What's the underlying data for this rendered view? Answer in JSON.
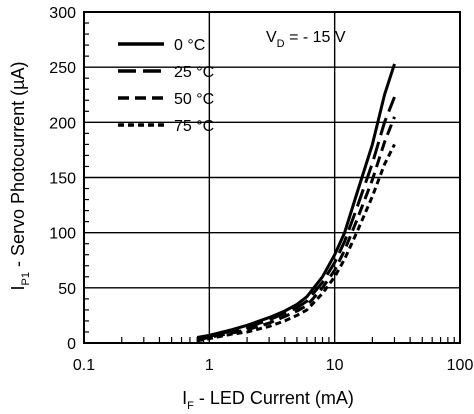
{
  "chart_data": {
    "type": "line",
    "xscale": "log",
    "xlim": [
      0.1,
      100
    ],
    "ylim": [
      0,
      300
    ],
    "grid": true,
    "legend_position": "top-left",
    "x_tick_labels": [
      "0.1",
      "1",
      "10",
      "100"
    ],
    "y_tick_labels": [
      "0",
      "50",
      "100",
      "150",
      "200",
      "250",
      "300"
    ],
    "xlabel": {
      "main": "I",
      "sub": "F",
      "rest": " - LED Current (mA)"
    },
    "ylabel": {
      "main": "I",
      "sub": "P1",
      "rest": " - Servo Photocurrent (µA)"
    },
    "annotation": {
      "main": "V",
      "sub": "D",
      "rest": " = - 15 V"
    },
    "series": [
      {
        "name": "0 °C",
        "dash": "solid",
        "x": [
          0.8,
          1,
          1.5,
          2,
          3,
          4,
          5,
          6,
          8,
          10,
          12,
          15,
          20,
          25,
          30
        ],
        "y": [
          5,
          7,
          12,
          16,
          23,
          29,
          35,
          42,
          60,
          80,
          100,
          135,
          180,
          225,
          253
        ]
      },
      {
        "name": "25 °C",
        "dash": "long-dash",
        "x": [
          0.8,
          1,
          1.5,
          2,
          3,
          4,
          5,
          6,
          8,
          10,
          12,
          15,
          20,
          25,
          30
        ],
        "y": [
          4,
          6,
          11,
          14,
          21,
          27,
          32,
          38,
          55,
          73,
          92,
          122,
          163,
          200,
          223
        ]
      },
      {
        "name": "50 °C",
        "dash": "dash",
        "x": [
          0.8,
          1,
          1.5,
          2,
          3,
          4,
          5,
          6,
          8,
          10,
          12,
          15,
          20,
          25,
          30
        ],
        "y": [
          3,
          5,
          9,
          12,
          18,
          24,
          29,
          34,
          50,
          66,
          84,
          111,
          148,
          182,
          205
        ]
      },
      {
        "name": "75 °C",
        "dash": "short-dash",
        "x": [
          0.8,
          1,
          1.5,
          2,
          3,
          4,
          5,
          6,
          8,
          10,
          12,
          15,
          20,
          25,
          30
        ],
        "y": [
          2,
          4,
          8,
          10,
          15,
          20,
          25,
          30,
          45,
          60,
          76,
          100,
          133,
          162,
          180
        ]
      }
    ]
  }
}
